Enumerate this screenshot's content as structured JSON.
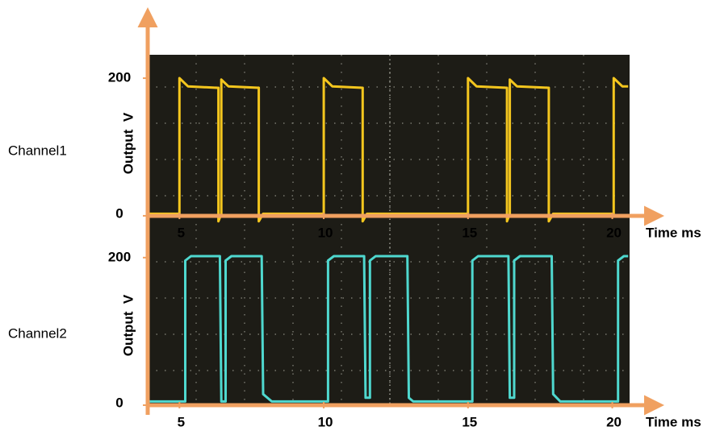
{
  "chart_data": [
    {
      "type": "line",
      "title": "Channel1",
      "y_label": "Output  V",
      "x_label": "Time ms",
      "xlim": [
        3.9,
        20.6
      ],
      "xticks": [
        5,
        10,
        15,
        20
      ],
      "ylim": [
        -20,
        234
      ],
      "yticks": [
        0,
        200
      ],
      "series": [
        {
          "name": "Channel1",
          "color": "#f4c61e",
          "x": [
            3.9,
            5.0,
            5.0,
            5.3,
            6.3,
            6.35,
            6.35,
            6.45,
            6.45,
            6.7,
            7.75,
            7.75,
            7.9,
            10.0,
            10.0,
            10.3,
            11.35,
            11.35,
            11.5,
            15.0,
            15.0,
            15.3,
            16.35,
            16.35,
            16.45,
            16.45,
            16.7,
            17.8,
            17.8,
            17.95,
            20.05,
            20.05,
            20.35,
            20.55
          ],
          "values": [
            3,
            3,
            200,
            188,
            186,
            186,
            -8,
            3,
            198,
            188,
            186,
            -8,
            3,
            3,
            200,
            188,
            186,
            -8,
            3,
            3,
            200,
            188,
            186,
            -8,
            3,
            198,
            188,
            186,
            -8,
            3,
            3,
            200,
            188,
            188
          ]
        }
      ]
    },
    {
      "type": "line",
      "title": "Channel2",
      "y_label": "Output  V",
      "x_label": "Time ms",
      "xlim": [
        3.9,
        20.6
      ],
      "xticks": [
        5,
        10,
        15,
        20
      ],
      "ylim": [
        0,
        238
      ],
      "yticks": [
        0,
        200
      ],
      "series": [
        {
          "name": "Channel2",
          "color": "#4fd8cf",
          "x": [
            3.9,
            5.2,
            5.2,
            5.4,
            6.4,
            6.45,
            6.6,
            6.6,
            6.8,
            7.85,
            7.9,
            8.2,
            10.15,
            10.15,
            10.35,
            11.4,
            11.45,
            11.6,
            11.6,
            11.8,
            12.9,
            12.95,
            13.1,
            15.15,
            15.15,
            15.35,
            16.4,
            16.45,
            16.6,
            16.6,
            16.8,
            17.9,
            17.95,
            18.2,
            20.2,
            20.2,
            20.4,
            20.55
          ],
          "values": [
            5,
            5,
            196,
            202,
            202,
            5,
            5,
            196,
            202,
            202,
            15,
            5,
            5,
            196,
            202,
            202,
            10,
            10,
            196,
            202,
            202,
            10,
            5,
            5,
            196,
            202,
            202,
            10,
            10,
            196,
            202,
            202,
            15,
            5,
            5,
            196,
            202,
            202
          ]
        }
      ]
    }
  ]
}
